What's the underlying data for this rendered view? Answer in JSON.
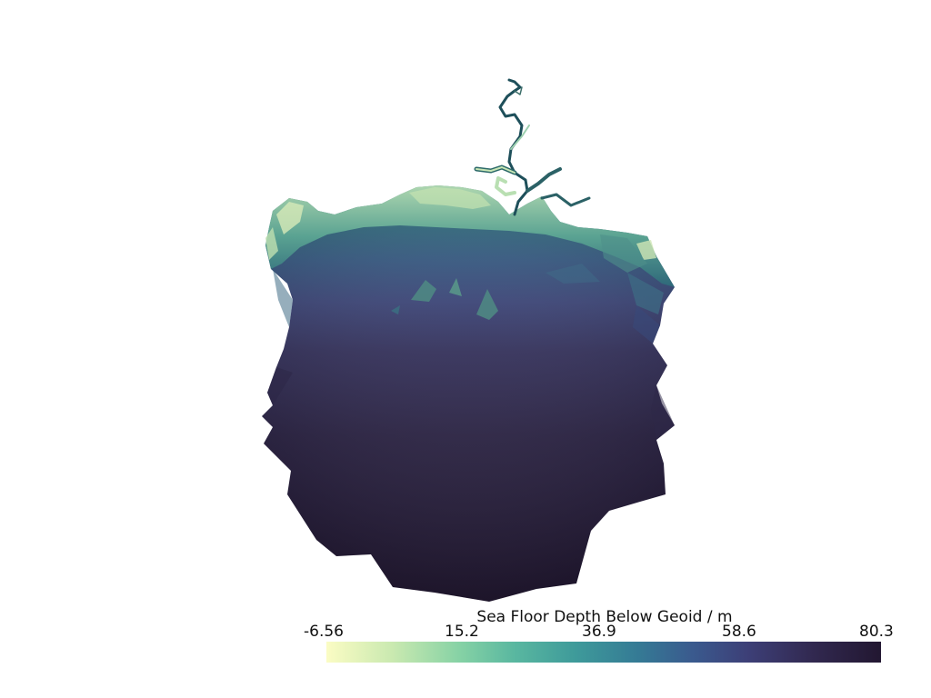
{
  "scalar_bar": {
    "title": "Sea Floor Depth Below Geoid / m",
    "ticks": [
      "-6.56",
      "15.2",
      "36.9",
      "58.6",
      "80.3"
    ],
    "range": [
      -6.56,
      80.3
    ],
    "colormap": [
      "#fbfcc4",
      "#86d2a5",
      "#3e9a9a",
      "#3a5a8e",
      "#31284f",
      "#221731"
    ]
  },
  "scene": {
    "background": "#ffffff",
    "shallow_color": "#9fd3b0",
    "mid_color": "#2d6a7a",
    "deep_color": "#231a33"
  }
}
